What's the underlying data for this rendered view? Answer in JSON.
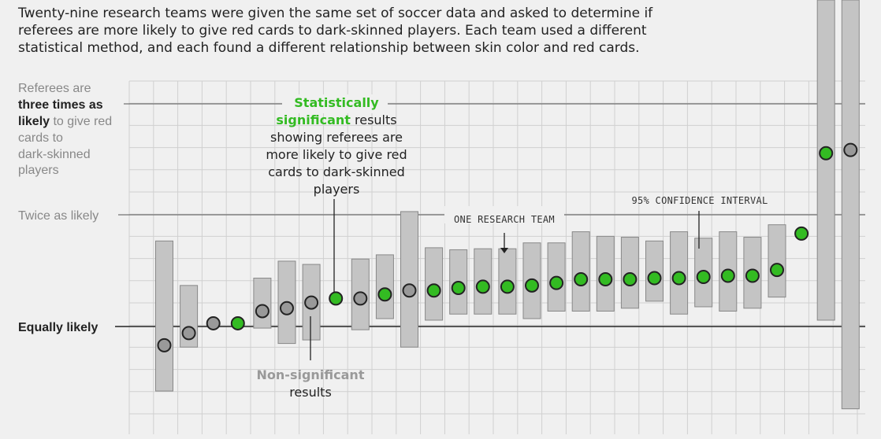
{
  "intro": {
    "line1": "Twenty-nine research teams were given the same set of soccer data and asked to determine if",
    "line2": "referees are more likely to give red cards to dark-skinned players. Each team used a different",
    "line3": "statistical method, and each found a different relationship between skin color and red cards."
  },
  "axis_labels": {
    "three_l1": "Referees are",
    "three_l2_bold": "three times as",
    "three_l3_bold": "likely",
    "three_l3_rest": " to give red",
    "three_l4": "cards to",
    "three_l5": "dark-skinned",
    "three_l6": "players",
    "twice": "Twice as likely",
    "equal": "Equally likely"
  },
  "annotations": {
    "sig_l1_green": "Statistically",
    "sig_l2_green": "significant",
    "sig_l2_rest": " results",
    "sig_l3": "showing referees are",
    "sig_l4": "more likely to give red",
    "sig_l5": "cards to dark-skinned",
    "sig_l6": "players",
    "nonsig_l1": "Non-significant",
    "nonsig_l2": "results",
    "one_team": "ONE RESEARCH TEAM",
    "ci": "95% CONFIDENCE INTERVAL"
  },
  "colors": {
    "significant": "#33bb22",
    "nonsignificant": "#999999",
    "interval": "#c4c4c4",
    "grid": "#d0d0d0"
  },
  "chart_data": {
    "type": "scatter",
    "y_scale": "log",
    "ylim": [
      0.62,
      5.4
    ],
    "yticks": [
      1,
      2,
      3
    ],
    "teams": [
      {
        "or": 0.89,
        "lo": 0.67,
        "hi": 1.7,
        "sig": false
      },
      {
        "or": 0.96,
        "lo": 0.88,
        "hi": 1.29,
        "sig": false
      },
      {
        "or": 1.02,
        "lo": 1.0,
        "hi": 1.0,
        "sig": false
      },
      {
        "or": 1.02,
        "lo": 1.0,
        "hi": 1.0,
        "sig": true
      },
      {
        "or": 1.1,
        "lo": 0.99,
        "hi": 1.35,
        "sig": false
      },
      {
        "or": 1.12,
        "lo": 0.9,
        "hi": 1.5,
        "sig": false
      },
      {
        "or": 1.16,
        "lo": 0.92,
        "hi": 1.47,
        "sig": false
      },
      {
        "or": 1.19,
        "lo": 1.0,
        "hi": 1.0,
        "sig": true
      },
      {
        "or": 1.19,
        "lo": 0.98,
        "hi": 1.52,
        "sig": false
      },
      {
        "or": 1.22,
        "lo": 1.05,
        "hi": 1.56,
        "sig": true
      },
      {
        "or": 1.25,
        "lo": 0.88,
        "hi": 2.04,
        "sig": false
      },
      {
        "or": 1.25,
        "lo": 1.04,
        "hi": 1.63,
        "sig": true
      },
      {
        "or": 1.27,
        "lo": 1.08,
        "hi": 1.61,
        "sig": true
      },
      {
        "or": 1.28,
        "lo": 1.08,
        "hi": 1.62,
        "sig": true
      },
      {
        "or": 1.28,
        "lo": 1.08,
        "hi": 1.62,
        "sig": true
      },
      {
        "or": 1.29,
        "lo": 1.05,
        "hi": 1.68,
        "sig": true
      },
      {
        "or": 1.31,
        "lo": 1.1,
        "hi": 1.68,
        "sig": true
      },
      {
        "or": 1.34,
        "lo": 1.1,
        "hi": 1.8,
        "sig": true
      },
      {
        "or": 1.34,
        "lo": 1.1,
        "hi": 1.75,
        "sig": true
      },
      {
        "or": 1.34,
        "lo": 1.12,
        "hi": 1.74,
        "sig": true
      },
      {
        "or": 1.35,
        "lo": 1.17,
        "hi": 1.7,
        "sig": true
      },
      {
        "or": 1.35,
        "lo": 1.08,
        "hi": 1.8,
        "sig": true
      },
      {
        "or": 1.36,
        "lo": 1.13,
        "hi": 1.73,
        "sig": true
      },
      {
        "or": 1.37,
        "lo": 1.1,
        "hi": 1.8,
        "sig": true
      },
      {
        "or": 1.37,
        "lo": 1.12,
        "hi": 1.74,
        "sig": true
      },
      {
        "or": 1.42,
        "lo": 1.2,
        "hi": 1.88,
        "sig": true
      },
      {
        "or": 1.78,
        "lo": 1.0,
        "hi": 1.0,
        "sig": true
      },
      {
        "or": 2.93,
        "lo": 1.04,
        "hi": 8.0,
        "sig": true
      },
      {
        "or": 2.99,
        "lo": 0.6,
        "hi": 8.0,
        "sig": false
      }
    ]
  }
}
